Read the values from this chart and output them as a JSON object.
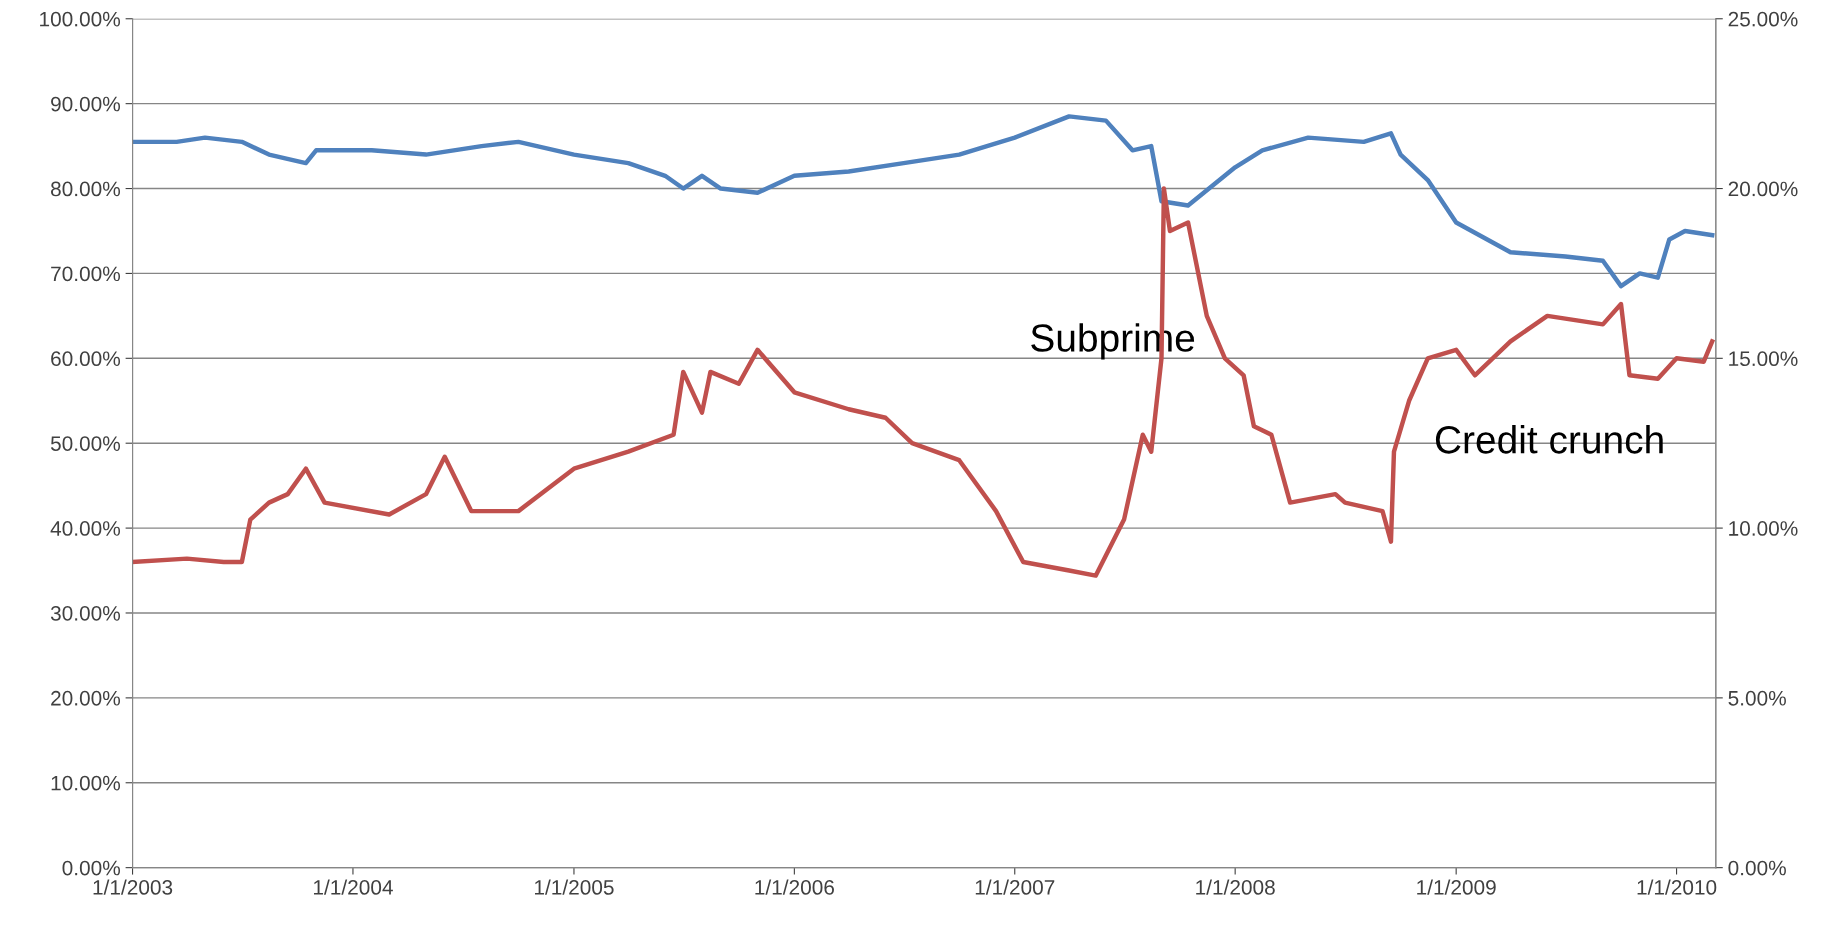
{
  "chart_data": {
    "type": "line",
    "xlim": [
      "2003-01-01",
      "2010-03-07"
    ],
    "xticks": [
      {
        "value": "2003-01-01",
        "label": "1/1/2003"
      },
      {
        "value": "2004-01-01",
        "label": "1/1/2004"
      },
      {
        "value": "2005-01-01",
        "label": "1/1/2005"
      },
      {
        "value": "2006-01-01",
        "label": "1/1/2006"
      },
      {
        "value": "2007-01-01",
        "label": "1/1/2007"
      },
      {
        "value": "2008-01-01",
        "label": "1/1/2008"
      },
      {
        "value": "2009-01-01",
        "label": "1/1/2009"
      },
      {
        "value": "2010-01-01",
        "label": "1/1/2010"
      }
    ],
    "ylim": [
      0,
      100
    ],
    "yticks": [
      {
        "value": 0,
        "label": "0.00%"
      },
      {
        "value": 10,
        "label": "10.00%"
      },
      {
        "value": 20,
        "label": "20.00%"
      },
      {
        "value": 30,
        "label": "30.00%"
      },
      {
        "value": 40,
        "label": "40.00%"
      },
      {
        "value": 50,
        "label": "50.00%"
      },
      {
        "value": 60,
        "label": "60.00%"
      },
      {
        "value": 70,
        "label": "70.00%"
      },
      {
        "value": 80,
        "label": "80.00%"
      },
      {
        "value": 90,
        "label": "90.00%"
      },
      {
        "value": 100,
        "label": "100.00%"
      }
    ],
    "y2lim": [
      0,
      25
    ],
    "y2ticks": [
      {
        "value": 0,
        "label": "0.00%"
      },
      {
        "value": 5,
        "label": "5.00%"
      },
      {
        "value": 10,
        "label": "10.00%"
      },
      {
        "value": 15,
        "label": "15.00%"
      },
      {
        "value": 20,
        "label": "20.00%"
      },
      {
        "value": 25,
        "label": "25.00%"
      }
    ],
    "grid": "y",
    "line_style": "solid",
    "series": [
      {
        "color": "#4f81bd",
        "x": [
          "2003-01-01",
          "2003-03-15",
          "2003-05-01",
          "2003-07-01",
          "2003-08-15",
          "2003-10-15",
          "2003-11-01",
          "2004-02-01",
          "2004-05-01",
          "2004-08-01",
          "2004-10-01",
          "2005-01-01",
          "2005-04-01",
          "2005-06-01",
          "2005-07-01",
          "2005-08-01",
          "2005-09-01",
          "2005-11-01",
          "2006-01-01",
          "2006-04-01",
          "2006-07-01",
          "2006-10-01",
          "2007-01-01",
          "2007-04-01",
          "2007-06-01",
          "2007-07-15",
          "2007-08-15",
          "2007-09-01",
          "2007-10-15",
          "2008-01-01",
          "2008-02-15",
          "2008-05-01",
          "2008-08-01",
          "2008-09-15",
          "2008-10-01",
          "2008-11-15",
          "2009-01-01",
          "2009-04-01",
          "2009-07-01",
          "2009-09-01",
          "2009-10-01",
          "2009-11-01",
          "2009-12-01",
          "2009-12-20",
          "2010-01-15",
          "2010-03-01"
        ],
        "values": [
          85.5,
          85.5,
          86.0,
          85.5,
          84.0,
          83.0,
          84.5,
          84.5,
          84.0,
          85.0,
          85.5,
          84.0,
          83.0,
          81.5,
          80.0,
          81.5,
          80.0,
          79.5,
          81.5,
          82.0,
          83.0,
          84.0,
          86.0,
          88.5,
          88.0,
          84.5,
          85.0,
          78.5,
          78.0,
          82.5,
          84.5,
          86.0,
          85.5,
          86.5,
          84.0,
          81.0,
          76.0,
          72.5,
          72.0,
          71.5,
          68.5,
          70.0,
          69.5,
          74.0,
          75.0,
          74.5
        ]
      },
      {
        "color": "#c0504d",
        "axis": "y2",
        "x": [
          "2003-01-01",
          "2003-04-01",
          "2003-06-01",
          "2003-07-01",
          "2003-07-15",
          "2003-08-15",
          "2003-09-15",
          "2003-10-15",
          "2003-11-15",
          "2004-03-01",
          "2004-05-01",
          "2004-06-01",
          "2004-07-15",
          "2004-10-01",
          "2005-01-01",
          "2005-04-01",
          "2005-06-15",
          "2005-07-01",
          "2005-08-01",
          "2005-08-15",
          "2005-10-01",
          "2005-11-01",
          "2006-01-01",
          "2006-04-01",
          "2006-06-01",
          "2006-07-15",
          "2006-10-01",
          "2006-12-01",
          "2007-01-15",
          "2007-04-01",
          "2007-05-15",
          "2007-07-01",
          "2007-08-01",
          "2007-08-15",
          "2007-09-01",
          "2007-09-05",
          "2007-09-15",
          "2007-10-15",
          "2007-11-15",
          "2007-12-15",
          "2008-01-15",
          "2008-02-01",
          "2008-03-01",
          "2008-04-01",
          "2008-06-15",
          "2008-07-01",
          "2008-09-01",
          "2008-09-15",
          "2008-09-20",
          "2008-10-15",
          "2008-11-15",
          "2009-01-01",
          "2009-02-01",
          "2009-04-01",
          "2009-06-01",
          "2009-09-01",
          "2009-10-01",
          "2009-10-15",
          "2009-12-01",
          "2010-01-01",
          "2010-02-15",
          "2010-03-01"
        ],
        "values": [
          9.0,
          9.1,
          9.0,
          9.0,
          10.25,
          10.75,
          11.0,
          11.75,
          10.75,
          10.4,
          11.0,
          12.1,
          10.5,
          10.5,
          11.75,
          12.25,
          12.75,
          14.6,
          13.4,
          14.6,
          14.25,
          15.25,
          14.0,
          13.5,
          13.25,
          12.5,
          12.0,
          10.5,
          9.0,
          8.75,
          8.6,
          10.25,
          12.75,
          12.25,
          15.0,
          20.0,
          18.75,
          19.0,
          16.25,
          15.0,
          14.5,
          13.0,
          12.75,
          10.75,
          11.0,
          10.75,
          10.5,
          9.6,
          12.25,
          13.75,
          15.0,
          15.25,
          14.5,
          15.5,
          16.25,
          16.0,
          16.6,
          14.5,
          14.4,
          15.0,
          14.9,
          15.5
        ]
      }
    ],
    "annotations": [
      "Subprime",
      "Credit crunch"
    ]
  }
}
